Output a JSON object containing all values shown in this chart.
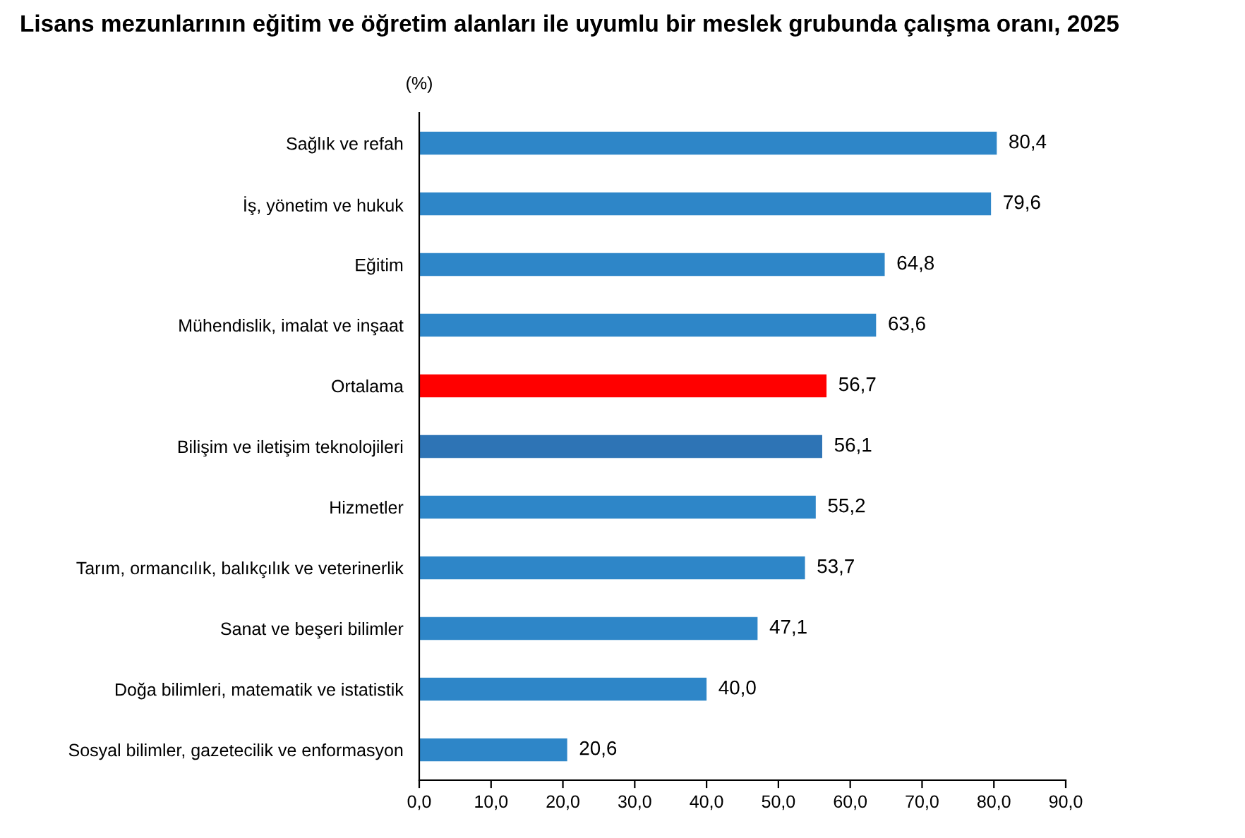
{
  "chart_data": {
    "type": "bar",
    "orientation": "horizontal",
    "title": "Lisans mezunlarının eğitim ve öğretim alanları ile uyumlu bir meslek grubunda çalışma oranı, 2025",
    "annotations": [
      "(%)"
    ],
    "categories": [
      "Sağlık ve refah",
      "İş, yönetim ve hukuk",
      "Eğitim",
      "Mühendislik, imalat ve inşaat",
      "Ortalama",
      "Bilişim ve iletişim teknolojileri",
      "Hizmetler",
      "Tarım, ormancılık, balıkçılık ve veterinerlik",
      "Sanat ve beşeri bilimler",
      "Doğa bilimleri, matematik ve istatistik",
      "Sosyal bilimler, gazetecilik ve enformasyon"
    ],
    "values": [
      80.4,
      79.6,
      64.8,
      63.6,
      56.7,
      56.1,
      55.2,
      53.7,
      47.1,
      40.0,
      20.6
    ],
    "value_labels": [
      "80,4",
      "79,6",
      "64,8",
      "63,6",
      "56,7",
      "56,1",
      "55,2",
      "53,7",
      "47,1",
      "40,0",
      "20,6"
    ],
    "colors": [
      "#2e86c8",
      "#2e86c8",
      "#2e86c8",
      "#2e86c8",
      "#ff0000",
      "#2e74b5",
      "#2e86c8",
      "#2e86c8",
      "#2e86c8",
      "#2e86c8",
      "#2e86c8"
    ],
    "xlim": [
      0,
      90
    ],
    "xticks": [
      {
        "value": 0,
        "label": "0,0"
      },
      {
        "value": 10,
        "label": "10,0"
      },
      {
        "value": 20,
        "label": "20,0"
      },
      {
        "value": 30,
        "label": "30,0"
      },
      {
        "value": 40,
        "label": "40,0"
      },
      {
        "value": 50,
        "label": "50,0"
      },
      {
        "value": 60,
        "label": "60,0"
      },
      {
        "value": 70,
        "label": "70,0"
      },
      {
        "value": 80,
        "label": "80,0"
      },
      {
        "value": 90,
        "label": "90,0"
      }
    ],
    "grid": false,
    "legend": false
  }
}
